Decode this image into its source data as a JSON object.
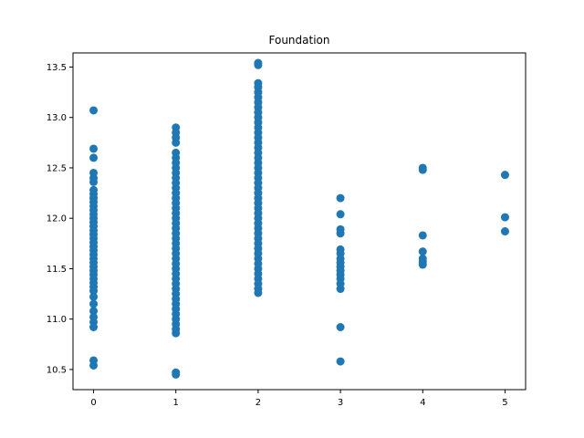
{
  "chart_data": {
    "type": "scatter",
    "title": "Foundation",
    "xlabel": "",
    "ylabel": "",
    "xlim": [
      -0.25,
      5.25
    ],
    "ylim": [
      10.3,
      13.64
    ],
    "xticks": [
      "0",
      "1",
      "2",
      "3",
      "4",
      "5"
    ],
    "yticks": [
      "10.5",
      "11.0",
      "11.5",
      "12.0",
      "12.5",
      "13.0",
      "13.5"
    ],
    "grid": false,
    "color": "#1f77b4",
    "series": [
      {
        "x": 0,
        "y": [
          13.07,
          12.69,
          12.6,
          12.45,
          12.4,
          12.36,
          12.28,
          12.24,
          12.2,
          12.16,
          12.12,
          12.08,
          12.04,
          12.0,
          11.96,
          11.92,
          11.88,
          11.84,
          11.8,
          11.76,
          11.72,
          11.68,
          11.64,
          11.6,
          11.56,
          11.52,
          11.48,
          11.44,
          11.4,
          11.36,
          11.32,
          11.28,
          11.22,
          11.15,
          11.08,
          11.02,
          10.97,
          10.92,
          10.59,
          10.54
        ]
      },
      {
        "x": 1,
        "y": [
          12.9,
          12.85,
          12.8,
          12.75,
          12.65,
          12.6,
          12.55,
          12.5,
          12.45,
          12.4,
          12.35,
          12.3,
          12.25,
          12.2,
          12.15,
          12.1,
          12.05,
          12.0,
          11.95,
          11.9,
          11.85,
          11.8,
          11.75,
          11.7,
          11.65,
          11.6,
          11.55,
          11.5,
          11.45,
          11.4,
          11.35,
          11.3,
          11.25,
          11.2,
          11.15,
          11.1,
          11.05,
          11.0,
          10.95,
          10.9,
          10.86,
          10.47,
          10.45
        ]
      },
      {
        "x": 2,
        "y": [
          13.54,
          13.52,
          13.34,
          13.3,
          13.25,
          13.2,
          13.15,
          13.1,
          13.05,
          13.0,
          12.95,
          12.9,
          12.85,
          12.8,
          12.75,
          12.7,
          12.65,
          12.6,
          12.55,
          12.5,
          12.45,
          12.4,
          12.35,
          12.3,
          12.25,
          12.2,
          12.15,
          12.1,
          12.05,
          12.0,
          11.95,
          11.9,
          11.85,
          11.8,
          11.75,
          11.7,
          11.65,
          11.6,
          11.55,
          11.5,
          11.45,
          11.4,
          11.35,
          11.3,
          11.26
        ]
      },
      {
        "x": 3,
        "y": [
          12.2,
          12.04,
          11.89,
          11.85,
          11.69,
          11.65,
          11.6,
          11.56,
          11.52,
          11.48,
          11.44,
          11.4,
          11.35,
          11.3,
          10.92,
          10.58
        ]
      },
      {
        "x": 4,
        "y": [
          12.5,
          12.48,
          11.83,
          11.67,
          11.6,
          11.57,
          11.54
        ]
      },
      {
        "x": 5,
        "y": [
          12.43,
          12.01,
          11.87
        ]
      }
    ]
  }
}
